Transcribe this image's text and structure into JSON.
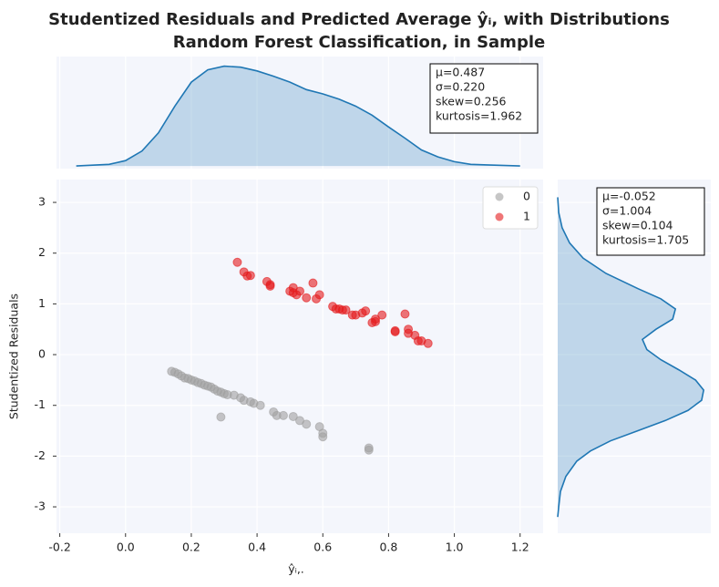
{
  "chart_data": [
    {
      "type": "scatter",
      "title": "Studentized Residuals and Predicted Average ŷᵢ, with Distributions",
      "subtitle": "Random Forest Classification, in Sample",
      "x_label": "ŷᵢ,.",
      "y_label": "Studentized Residuals",
      "xlim": [
        -0.21,
        1.27
      ],
      "ylim": [
        -3.52,
        3.45
      ],
      "xticks": [
        {
          "value": -0.2,
          "label": "-0.2"
        },
        {
          "value": 0,
          "label": "0.0"
        },
        {
          "value": 0.2,
          "label": "0.2"
        },
        {
          "value": 0.4,
          "label": "0.4"
        },
        {
          "value": 0.6,
          "label": "0.6"
        },
        {
          "value": 0.8,
          "label": "0.8"
        },
        {
          "value": 1,
          "label": "1.0"
        },
        {
          "value": 1.2,
          "label": "1.2"
        }
      ],
      "yticks": [
        -3,
        -2,
        -1,
        0,
        1,
        2,
        3
      ],
      "grid": true,
      "legend": "upper right",
      "series": [
        {
          "name": "0",
          "color": "#a0a0a0",
          "x": [
            0.14,
            0.15,
            0.16,
            0.17,
            0.18,
            0.19,
            0.2,
            0.21,
            0.22,
            0.23,
            0.24,
            0.25,
            0.26,
            0.27,
            0.28,
            0.29,
            0.3,
            0.31,
            0.33,
            0.35,
            0.36,
            0.38,
            0.39,
            0.41,
            0.45,
            0.46,
            0.48,
            0.51,
            0.53,
            0.55,
            0.59,
            0.6,
            0.6,
            0.74,
            0.74,
            0.29
          ],
          "values": [
            -0.33,
            -0.35,
            -0.38,
            -0.42,
            -0.46,
            -0.47,
            -0.5,
            -0.52,
            -0.55,
            -0.57,
            -0.6,
            -0.62,
            -0.64,
            -0.68,
            -0.72,
            -0.74,
            -0.77,
            -0.79,
            -0.8,
            -0.85,
            -0.9,
            -0.93,
            -0.96,
            -1.0,
            -1.13,
            -1.2,
            -1.2,
            -1.22,
            -1.3,
            -1.37,
            -1.42,
            -1.55,
            -1.62,
            -1.84,
            -1.88,
            -1.23
          ]
        },
        {
          "name": "1",
          "color": "#e41a1c",
          "x": [
            0.34,
            0.36,
            0.37,
            0.38,
            0.43,
            0.44,
            0.44,
            0.5,
            0.51,
            0.51,
            0.52,
            0.53,
            0.55,
            0.57,
            0.58,
            0.59,
            0.63,
            0.64,
            0.65,
            0.66,
            0.67,
            0.69,
            0.7,
            0.72,
            0.73,
            0.75,
            0.76,
            0.76,
            0.78,
            0.82,
            0.82,
            0.85,
            0.86,
            0.86,
            0.88,
            0.89,
            0.9,
            0.92
          ],
          "values": [
            1.82,
            1.63,
            1.55,
            1.56,
            1.44,
            1.38,
            1.35,
            1.25,
            1.32,
            1.22,
            1.18,
            1.25,
            1.12,
            1.41,
            1.1,
            1.18,
            0.95,
            0.9,
            0.9,
            0.88,
            0.88,
            0.78,
            0.78,
            0.82,
            0.86,
            0.63,
            0.7,
            0.65,
            0.78,
            0.47,
            0.45,
            0.8,
            0.5,
            0.42,
            0.38,
            0.27,
            0.27,
            0.22
          ]
        }
      ]
    },
    {
      "type": "area",
      "color": "#1f77b4",
      "xlim": [
        -0.21,
        1.27
      ],
      "ylim": [
        -0.05,
        2.05
      ],
      "x": [
        -0.15,
        -0.05,
        0.0,
        0.05,
        0.1,
        0.15,
        0.2,
        0.25,
        0.3,
        0.35,
        0.4,
        0.45,
        0.5,
        0.55,
        0.6,
        0.65,
        0.7,
        0.75,
        0.8,
        0.85,
        0.9,
        0.95,
        1.0,
        1.05,
        1.1,
        1.2
      ],
      "values": [
        0.0,
        0.03,
        0.1,
        0.28,
        0.62,
        1.12,
        1.57,
        1.8,
        1.87,
        1.85,
        1.78,
        1.68,
        1.57,
        1.43,
        1.35,
        1.25,
        1.12,
        0.95,
        0.73,
        0.52,
        0.3,
        0.17,
        0.08,
        0.03,
        0.02,
        0.0
      ],
      "annotation": [
        "μ=0.487",
        "σ=0.220",
        "skew=0.256",
        "kurtosis=1.962"
      ]
    },
    {
      "type": "area",
      "orientation": "horizontal",
      "color": "#1f77b4",
      "xlim": [
        -3.52,
        3.45
      ],
      "ylim": [
        0,
        0.45
      ],
      "x": [
        3.1,
        2.8,
        2.5,
        2.2,
        1.9,
        1.6,
        1.3,
        1.1,
        0.9,
        0.7,
        0.5,
        0.3,
        0.1,
        -0.1,
        -0.3,
        -0.5,
        -0.7,
        -0.9,
        -1.1,
        -1.3,
        -1.5,
        -1.7,
        -1.9,
        -2.1,
        -2.4,
        -2.7,
        -3.0,
        -3.2
      ],
      "values": [
        0,
        0.003,
        0.013,
        0.035,
        0.075,
        0.142,
        0.236,
        0.303,
        0.346,
        0.338,
        0.289,
        0.249,
        0.262,
        0.303,
        0.356,
        0.405,
        0.429,
        0.423,
        0.383,
        0.316,
        0.236,
        0.155,
        0.096,
        0.056,
        0.024,
        0.008,
        0.003,
        0
      ],
      "annotation": [
        "μ=-0.052",
        "σ=1.004",
        "skew=0.104",
        "kurtosis=1.705"
      ]
    }
  ]
}
